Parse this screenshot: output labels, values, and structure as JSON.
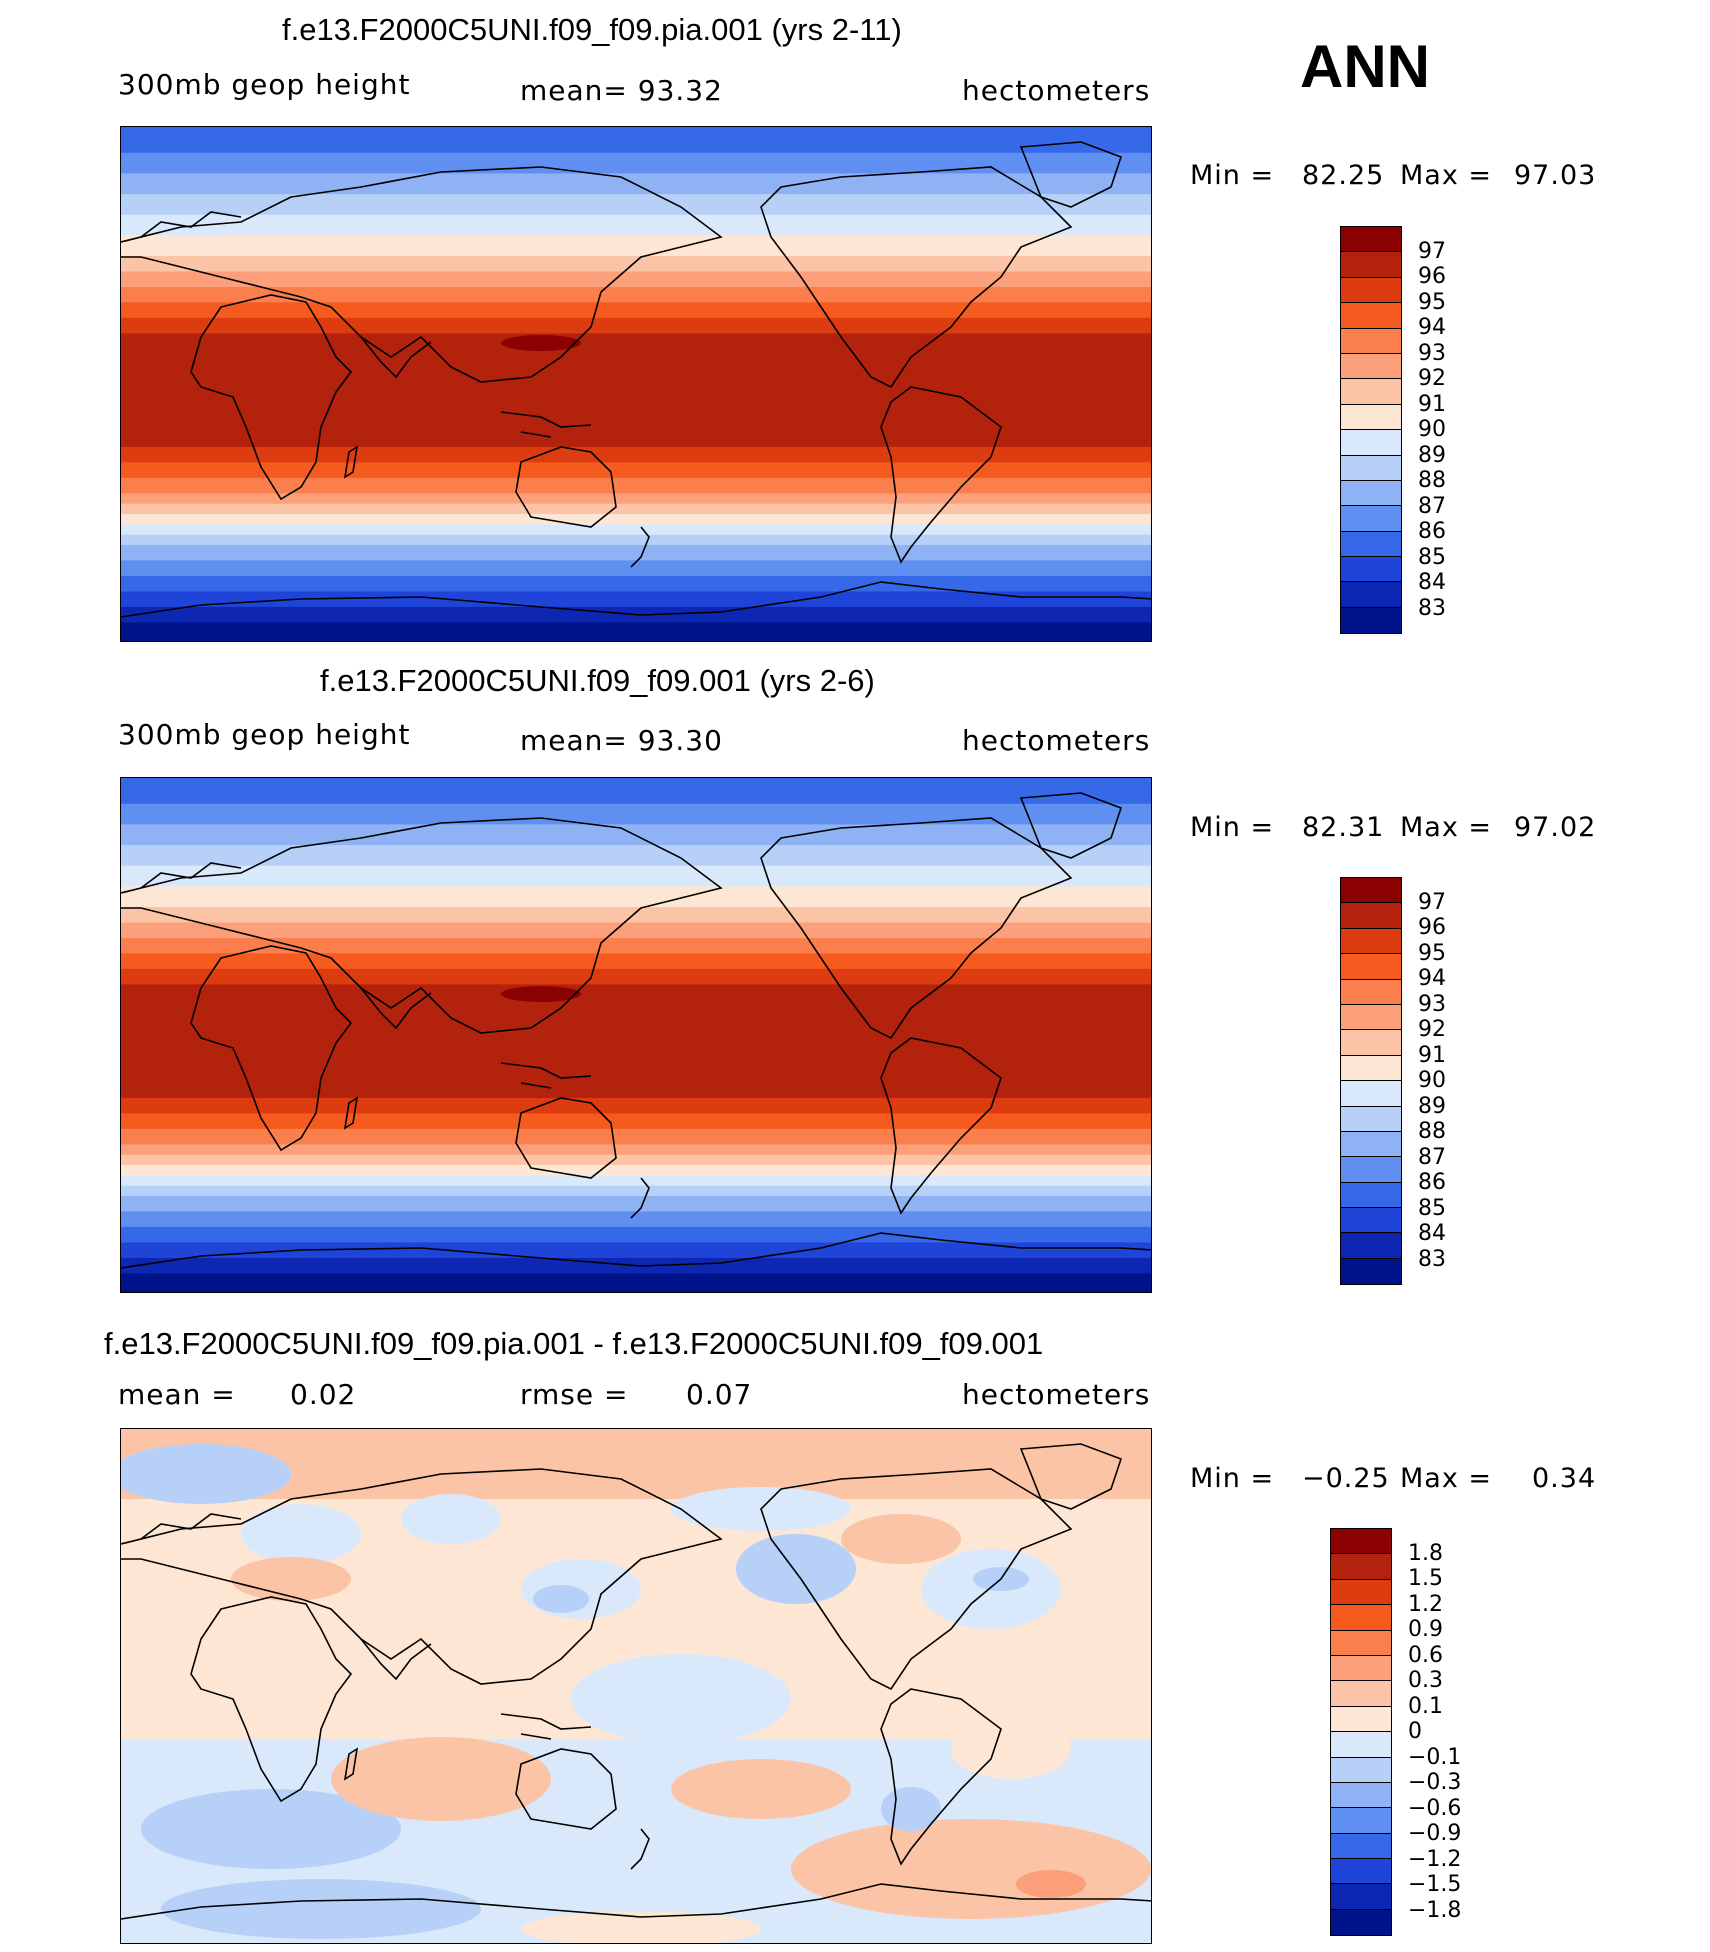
{
  "season": "ANN",
  "panels": [
    {
      "title": "f.e13.F2000C5UNI.f09_f09.pia.001 (yrs 2-11)",
      "left_label": "300mb  geop  height",
      "center_label": "mean=   93.32",
      "right_label": "hectometers",
      "min_label": "Min  =",
      "min_value": "82.25",
      "max_label": "Max  =",
      "max_value": "97.03",
      "colorbar_labels": [
        "97",
        "96",
        "95",
        "94",
        "93",
        "92",
        "91",
        "90",
        "89",
        "88",
        "87",
        "86",
        "85",
        "84",
        "83"
      ]
    },
    {
      "title": "f.e13.F2000C5UNI.f09_f09.001 (yrs 2-6)",
      "left_label": "300mb  geop  height",
      "center_label": "mean=   93.30",
      "right_label": "hectometers",
      "min_label": "Min  =",
      "min_value": "82.31",
      "max_label": "Max  =",
      "max_value": "97.02",
      "colorbar_labels": [
        "97",
        "96",
        "95",
        "94",
        "93",
        "92",
        "91",
        "90",
        "89",
        "88",
        "87",
        "86",
        "85",
        "84",
        "83"
      ]
    },
    {
      "title": "f.e13.F2000C5UNI.f09_f09.pia.001 - f.e13.F2000C5UNI.f09_f09.001",
      "left_label": "mean  =",
      "left_value": "0.02",
      "center_label": "rmse  =",
      "center_value": "0.07",
      "right_label": "hectometers",
      "min_label": "Min  =",
      "min_value": "−0.25",
      "max_label": "Max  =",
      "max_value": "0.34",
      "colorbar_labels": [
        "1.8",
        "1.5",
        "1.2",
        "0.9",
        "0.6",
        "0.3",
        "0.1",
        "0",
        "−0.1",
        "−0.3",
        "−0.6",
        "−0.9",
        "−1.2",
        "−1.5",
        "−1.8"
      ]
    }
  ],
  "colors": {
    "field_scale": [
      "#8b0000",
      "#b3220c",
      "#dd3b10",
      "#f55a1e",
      "#fa7f4c",
      "#fba07a",
      "#fcc4a6",
      "#fde7d4",
      "#d9e9fb",
      "#b6d0f8",
      "#8fb2f4",
      "#5f8ff0",
      "#3569e8",
      "#1f45d8",
      "#0e27b3",
      "#001489"
    ],
    "diff_scale": [
      "#8b0000",
      "#b3220c",
      "#dd3b10",
      "#f55a1e",
      "#fa7f4c",
      "#fba07a",
      "#fcc4a6",
      "#fde7d4",
      "#d9e9fb",
      "#b6d0f8",
      "#8fb2f4",
      "#5f8ff0",
      "#3569e8",
      "#1f45d8",
      "#0e27b3",
      "#001489"
    ]
  }
}
